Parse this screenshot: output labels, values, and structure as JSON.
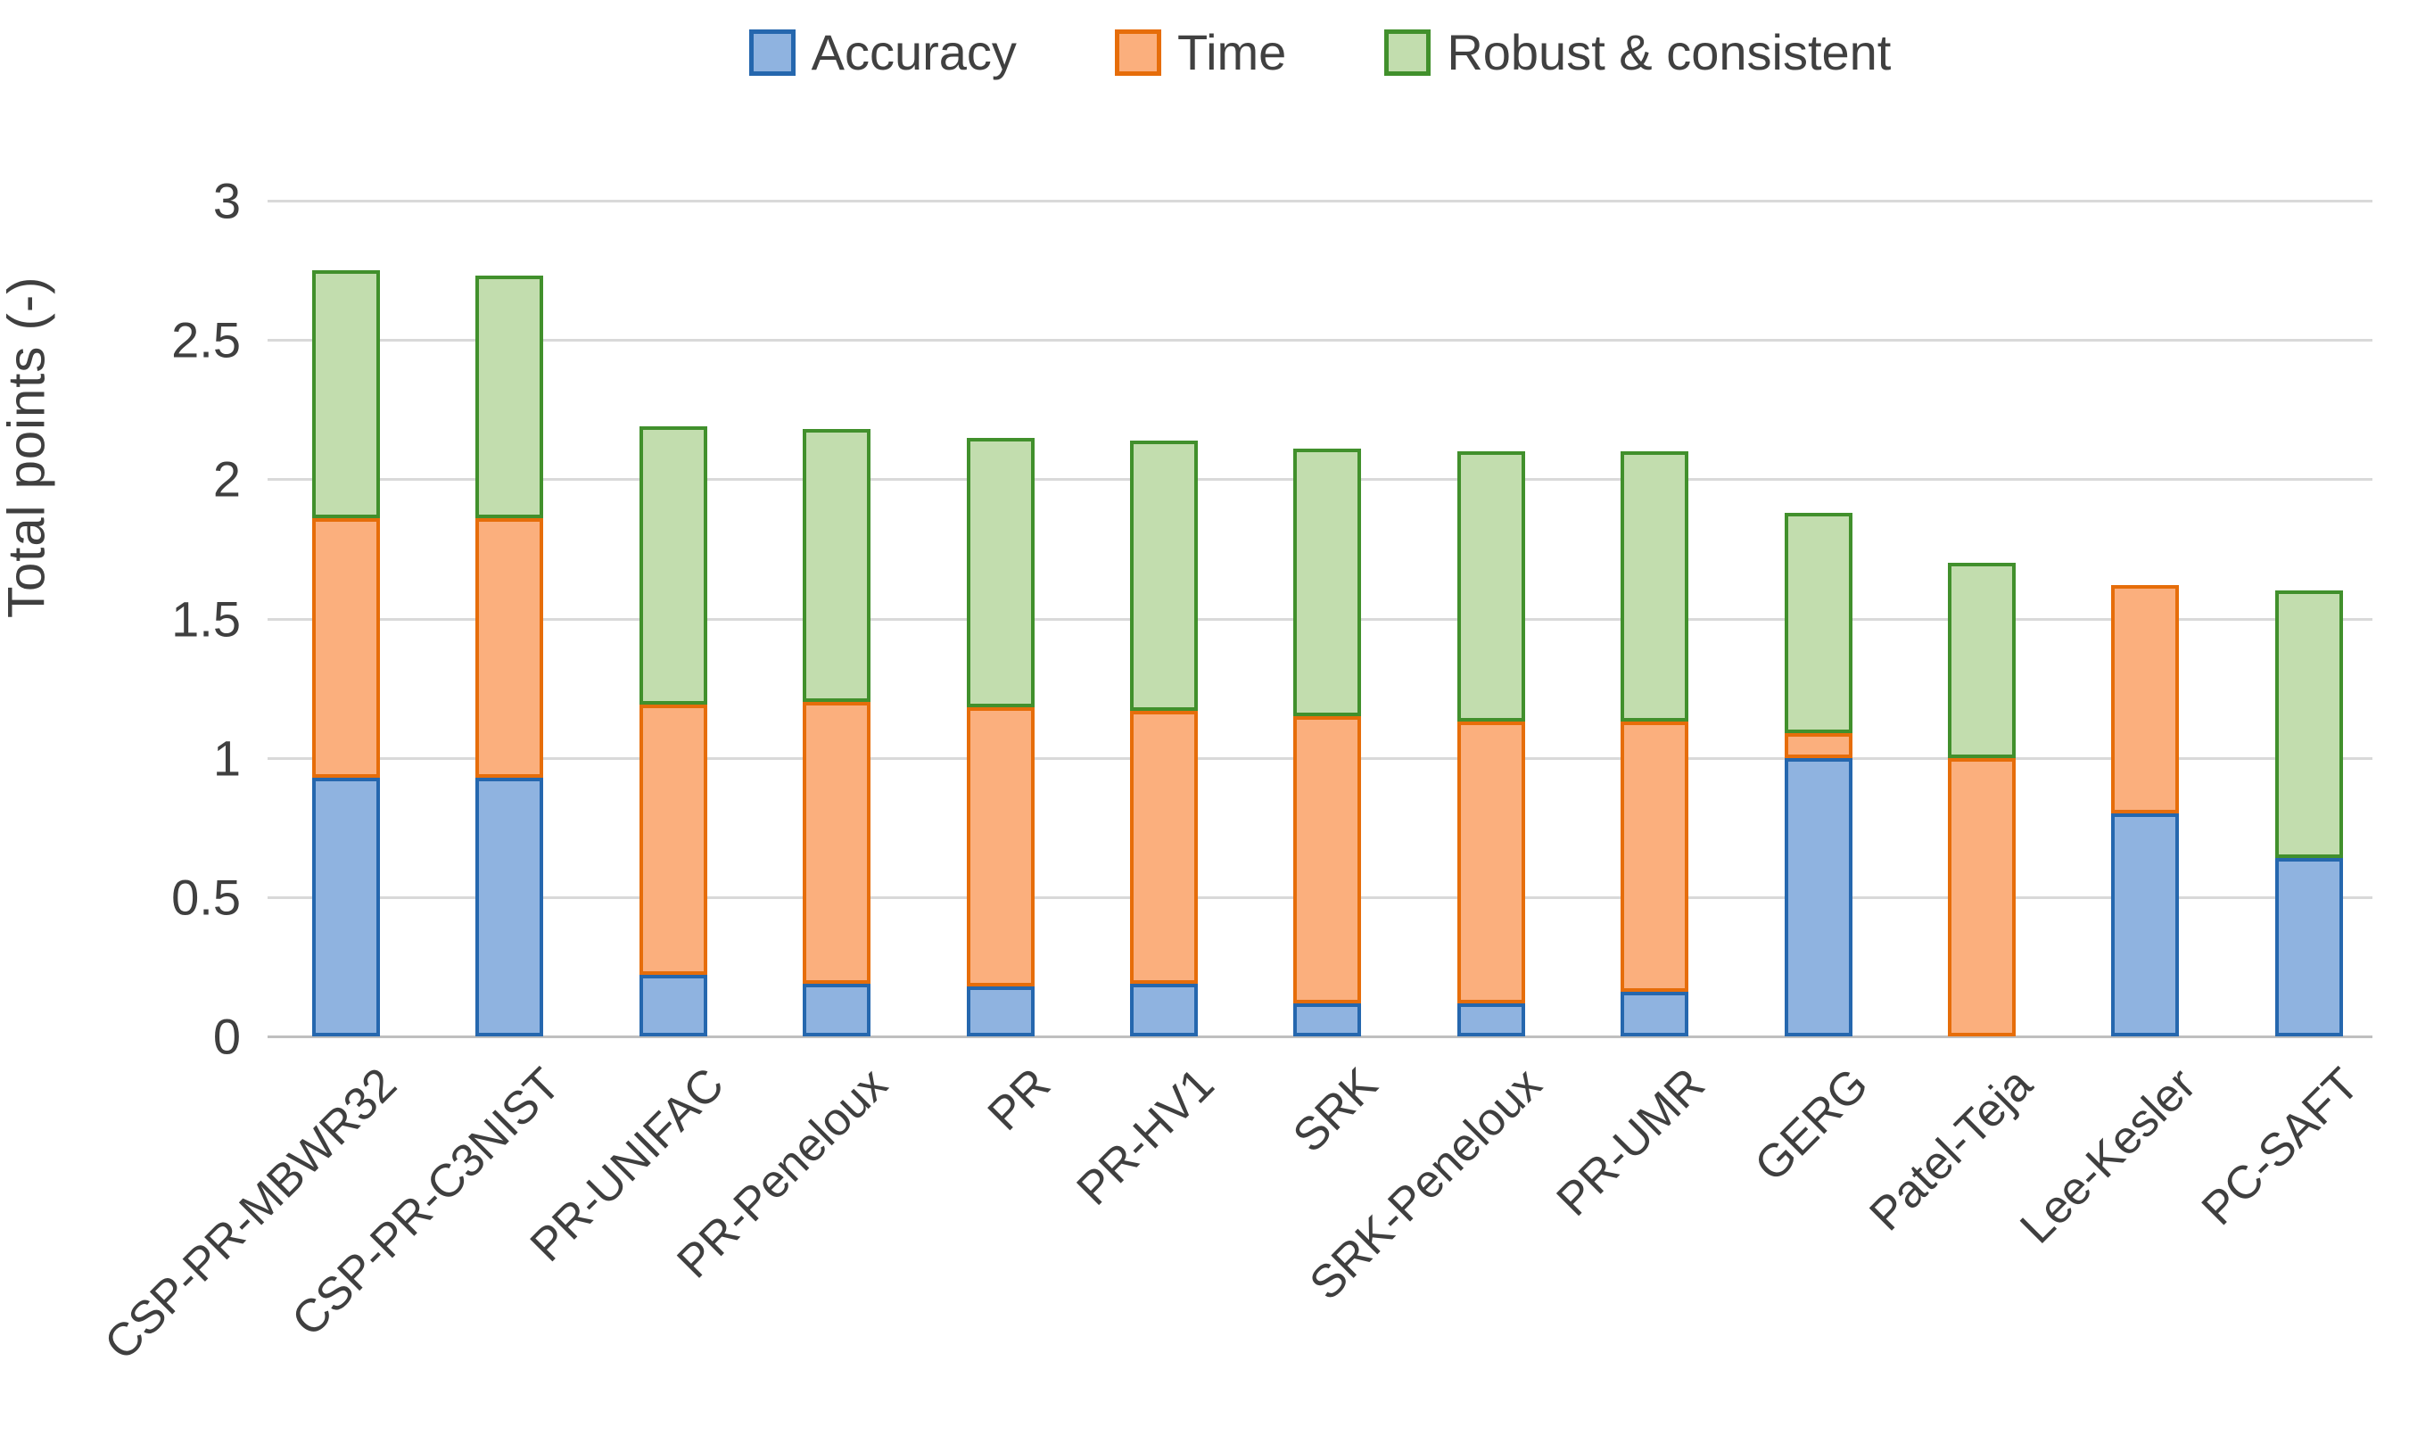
{
  "chart_data": {
    "type": "bar",
    "stacked": true,
    "title": "",
    "xlabel": "",
    "ylabel": "Total points (-)",
    "ylim": [
      0,
      3
    ],
    "ytick_step": 0.5,
    "yticks": [
      "0",
      "0.5",
      "1",
      "1.5",
      "2",
      "2.5",
      "3"
    ],
    "grid": "horizontal",
    "legend_position": "top",
    "categories": [
      "CSP-PR-MBWR32",
      "CSP-PR-C3NIST",
      "PR-UNIFAC",
      "PR-Peneloux",
      "PR",
      "PR-HV1",
      "SRK",
      "SRK-Peneloux",
      "PR-UMR",
      "GERG",
      "Patel-Teja",
      "Lee-Kesler",
      "PC-SAFT"
    ],
    "series": [
      {
        "name": "Accuracy",
        "fill_color": "#8FB3E0",
        "border_color": "#2567AE",
        "values": [
          0.93,
          0.93,
          0.22,
          0.19,
          0.18,
          0.19,
          0.12,
          0.12,
          0.16,
          1.0,
          0.0,
          0.8,
          0.64
        ]
      },
      {
        "name": "Time",
        "fill_color": "#FBAF7D",
        "border_color": "#E66D0A",
        "values": [
          0.93,
          0.93,
          0.97,
          1.01,
          1.0,
          0.98,
          1.03,
          1.01,
          0.97,
          0.09,
          1.0,
          0.82,
          0.0
        ]
      },
      {
        "name": "Robust & consistent",
        "fill_color": "#C2DDAE",
        "border_color": "#41902C",
        "values": [
          0.89,
          0.87,
          1.0,
          0.98,
          0.97,
          0.97,
          0.96,
          0.97,
          0.97,
          0.79,
          0.7,
          0.0,
          0.96
        ]
      }
    ],
    "stack_totals": [
      2.75,
      2.73,
      2.19,
      2.18,
      2.15,
      2.14,
      2.11,
      2.1,
      2.1,
      1.88,
      1.7,
      1.62,
      1.6
    ]
  }
}
